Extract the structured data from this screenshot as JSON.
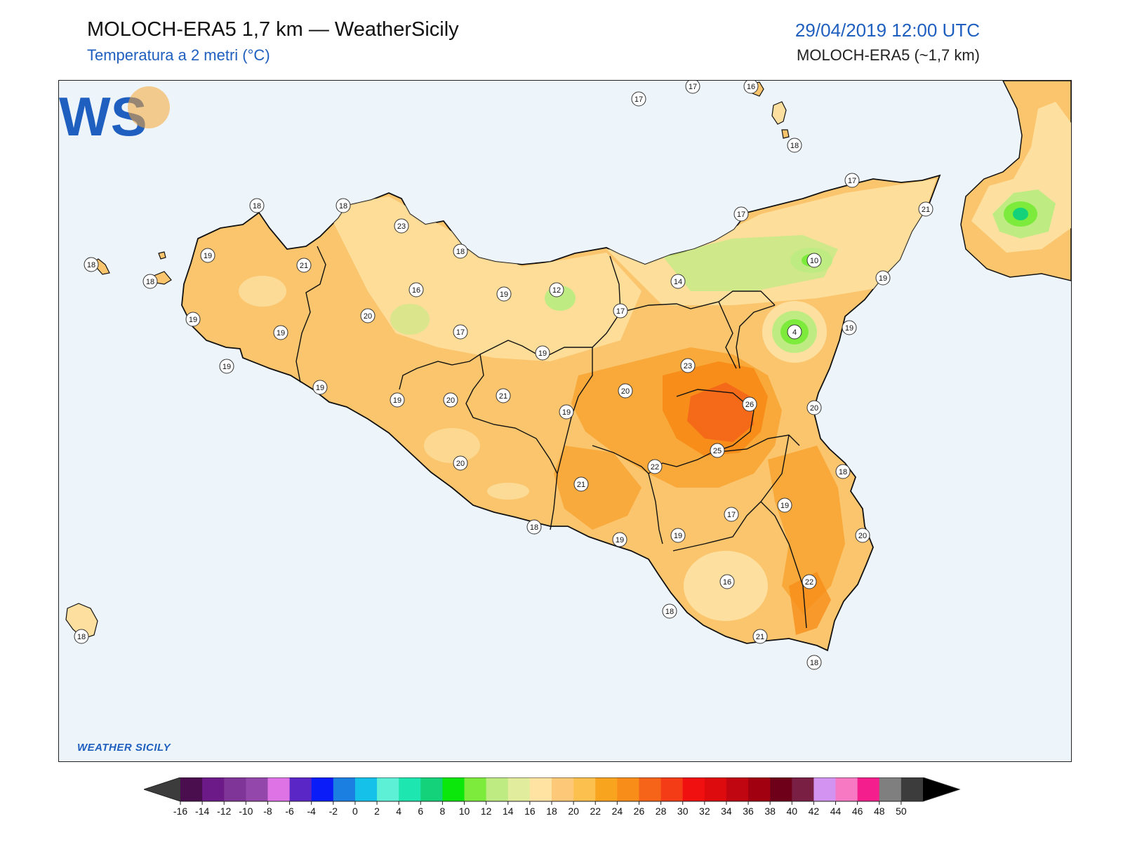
{
  "header": {
    "title": "MOLOCH-ERA5 1,7 km — WeatherSicily",
    "subtitle": "Temperatura a 2 metri (°C)",
    "datetime": "29/04/2019 12:00 UTC",
    "model": "MOLOCH-ERA5 (~1,7 km)"
  },
  "logo": {
    "letters": "WS",
    "caption": "WEATHER SICILY"
  },
  "colors": {
    "sea": "#eef5fa",
    "land_base": "#fbc56d",
    "warm": "#f8a534",
    "hot": "#f27f1b",
    "cool": "#fde0a0",
    "green": "#b8e887"
  },
  "stations": [
    {
      "v": "17"
    },
    {
      "v": "17"
    },
    {
      "v": "16"
    },
    {
      "v": "18"
    },
    {
      "v": "17"
    },
    {
      "v": "21"
    },
    {
      "v": "18"
    },
    {
      "v": "18"
    },
    {
      "v": "23"
    },
    {
      "v": "18"
    },
    {
      "v": "17"
    },
    {
      "v": "19"
    },
    {
      "v": "21"
    },
    {
      "v": "10"
    },
    {
      "v": "18"
    },
    {
      "v": "18"
    },
    {
      "v": "16"
    },
    {
      "v": "19"
    },
    {
      "v": "12"
    },
    {
      "v": "14"
    },
    {
      "v": "19"
    },
    {
      "v": "19"
    },
    {
      "v": "20"
    },
    {
      "v": "17"
    },
    {
      "v": "17"
    },
    {
      "v": "19"
    },
    {
      "v": "4"
    },
    {
      "v": "19"
    },
    {
      "v": "19"
    },
    {
      "v": "23"
    },
    {
      "v": "19"
    },
    {
      "v": "19"
    },
    {
      "v": "19"
    },
    {
      "v": "21"
    },
    {
      "v": "20"
    },
    {
      "v": "26"
    },
    {
      "v": "19"
    },
    {
      "v": "20"
    },
    {
      "v": "25"
    },
    {
      "v": "20"
    },
    {
      "v": "20"
    },
    {
      "v": "22"
    },
    {
      "v": "18"
    },
    {
      "v": "21"
    },
    {
      "v": "19"
    },
    {
      "v": "18"
    },
    {
      "v": "17"
    },
    {
      "v": "19"
    },
    {
      "v": "19"
    },
    {
      "v": "20"
    },
    {
      "v": "16"
    },
    {
      "v": "22"
    },
    {
      "v": "18"
    },
    {
      "v": "18"
    },
    {
      "v": "21"
    },
    {
      "v": "18"
    }
  ],
  "colorbar": {
    "ticks": [
      "-16",
      "-14",
      "-12",
      "-10",
      "-8",
      "-6",
      "-4",
      "-2",
      "0",
      "2",
      "4",
      "6",
      "8",
      "10",
      "12",
      "14",
      "16",
      "18",
      "20",
      "22",
      "24",
      "26",
      "28",
      "30",
      "32",
      "34",
      "36",
      "38",
      "40",
      "42",
      "44",
      "46",
      "48",
      "50"
    ],
    "colors": [
      "#4a0e4e",
      "#6b1a87",
      "#7f3597",
      "#9447ab",
      "#de73e6",
      "#5a27c6",
      "#0a1cf7",
      "#1a7fe0",
      "#15c1e8",
      "#5ef0d6",
      "#1ee6b0",
      "#14d27a",
      "#0be60b",
      "#7ceb3c",
      "#bfeb83",
      "#e1ec9c",
      "#fee3a3",
      "#fdc878",
      "#fcc04f",
      "#f9a41e",
      "#f88d1a",
      "#f56419",
      "#f43c16",
      "#f11010",
      "#dd0a0e",
      "#c00611",
      "#a10010",
      "#6f0019",
      "#7a1f44",
      "#d294f0",
      "#f779c4",
      "#f41f8c",
      "#7f7f7f",
      "#3c3c3c"
    ],
    "under_color": "#3c3c3c",
    "over_color": "#000000"
  }
}
